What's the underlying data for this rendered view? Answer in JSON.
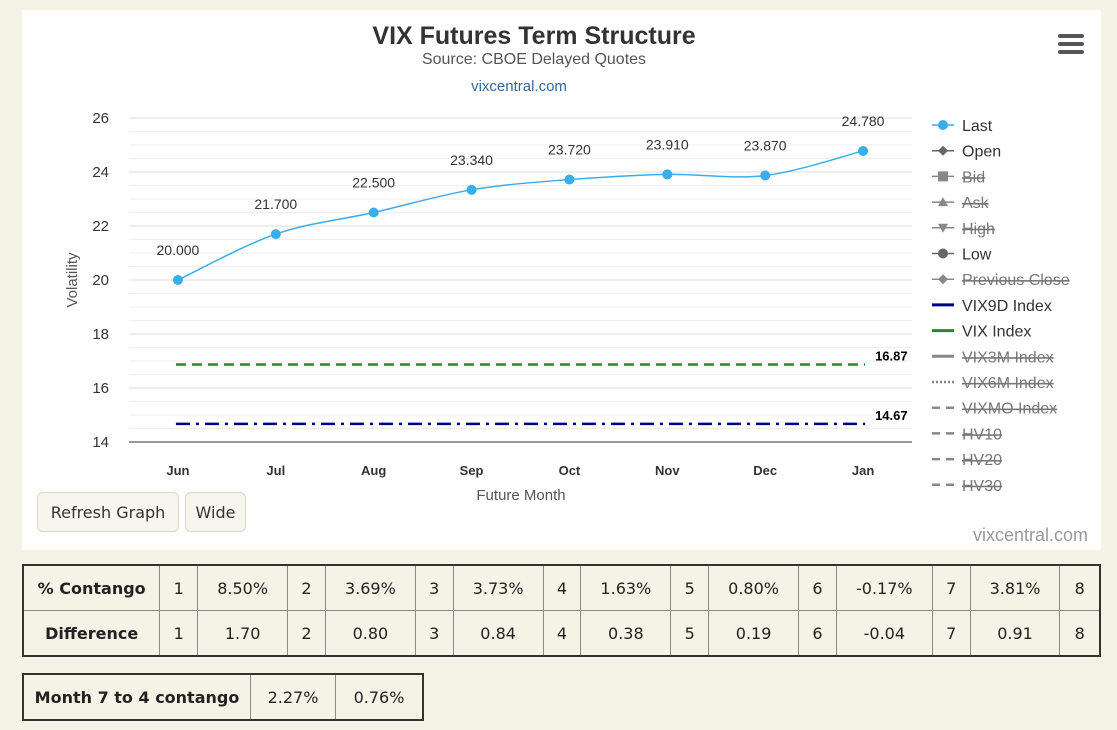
{
  "chart_data": {
    "type": "line",
    "title": "VIX Futures Term Structure",
    "subtitle": "Source: CBOE Delayed Quotes",
    "site_link": "vixcentral.com",
    "xlabel": "Future Month",
    "ylabel": "Volatility",
    "categories": [
      "Jun",
      "Jul",
      "Aug",
      "Sep",
      "Oct",
      "Nov",
      "Dec",
      "Jan"
    ],
    "ylim": [
      14,
      26
    ],
    "yticks": [
      14,
      16,
      18,
      20,
      22,
      24,
      26
    ],
    "grid": true,
    "legend_position": "right",
    "series": [
      {
        "name": "Last",
        "values": [
          20.0,
          21.7,
          22.5,
          23.34,
          23.72,
          23.91,
          23.87,
          24.78
        ],
        "labels": [
          "20.000",
          "21.700",
          "22.500",
          "23.340",
          "23.720",
          "23.910",
          "23.870",
          "24.780"
        ],
        "color": "#3aaee8"
      }
    ],
    "reference_lines": [
      {
        "name": "VIX Index",
        "value": 16.87,
        "label": "16.87",
        "color": "#228B22",
        "style": "dash"
      },
      {
        "name": "VIX9D Index",
        "value": 14.67,
        "label": "14.67",
        "color": "#00008B",
        "style": "dashdot"
      }
    ],
    "legend": [
      {
        "name": "Last",
        "symbol": "circle",
        "color": "#3aaee8",
        "enabled": true
      },
      {
        "name": "Open",
        "symbol": "diamond",
        "color": "#666666",
        "enabled": true
      },
      {
        "name": "Bid",
        "symbol": "square",
        "color": "#666666",
        "enabled": false
      },
      {
        "name": "Ask",
        "symbol": "triangle",
        "color": "#666666",
        "enabled": false
      },
      {
        "name": "High",
        "symbol": "triangle-down",
        "color": "#666666",
        "enabled": false
      },
      {
        "name": "Low",
        "symbol": "circle",
        "color": "#666666",
        "enabled": true
      },
      {
        "name": "Previous Close",
        "symbol": "diamond",
        "color": "#666666",
        "enabled": false
      },
      {
        "name": "VIX9D Index",
        "symbol": "solid",
        "color": "#00008B",
        "enabled": true
      },
      {
        "name": "VIX Index",
        "symbol": "solid",
        "color": "#228B22",
        "enabled": true
      },
      {
        "name": "VIX3M Index",
        "symbol": "solid",
        "color": "#777777",
        "enabled": false
      },
      {
        "name": "VIX6M Index",
        "symbol": "dot",
        "color": "#777777",
        "enabled": false
      },
      {
        "name": "VIXMO Index",
        "symbol": "dash",
        "color": "#777777",
        "enabled": false
      },
      {
        "name": "HV10",
        "symbol": "dash",
        "color": "#777777",
        "enabled": false
      },
      {
        "name": "HV20",
        "symbol": "dash",
        "color": "#777777",
        "enabled": false
      },
      {
        "name": "HV30",
        "symbol": "dash",
        "color": "#777777",
        "enabled": false
      }
    ]
  },
  "buttons": {
    "refresh": "Refresh Graph",
    "wide": "Wide"
  },
  "credit": "vixcentral.com",
  "contango_table": {
    "rows": [
      {
        "label": "% Contango",
        "cells": [
          "1",
          "8.50%",
          "2",
          "3.69%",
          "3",
          "3.73%",
          "4",
          "1.63%",
          "5",
          "0.80%",
          "6",
          "-0.17%",
          "7",
          "3.81%",
          "8"
        ]
      },
      {
        "label": "Difference",
        "cells": [
          "1",
          "1.70",
          "2",
          "0.80",
          "3",
          "0.84",
          "4",
          "0.38",
          "5",
          "0.19",
          "6",
          "-0.04",
          "7",
          "0.91",
          "8"
        ]
      }
    ]
  },
  "month_table": {
    "label": "Month 7 to 4 contango",
    "values": [
      "2.27%",
      "0.76%"
    ]
  }
}
